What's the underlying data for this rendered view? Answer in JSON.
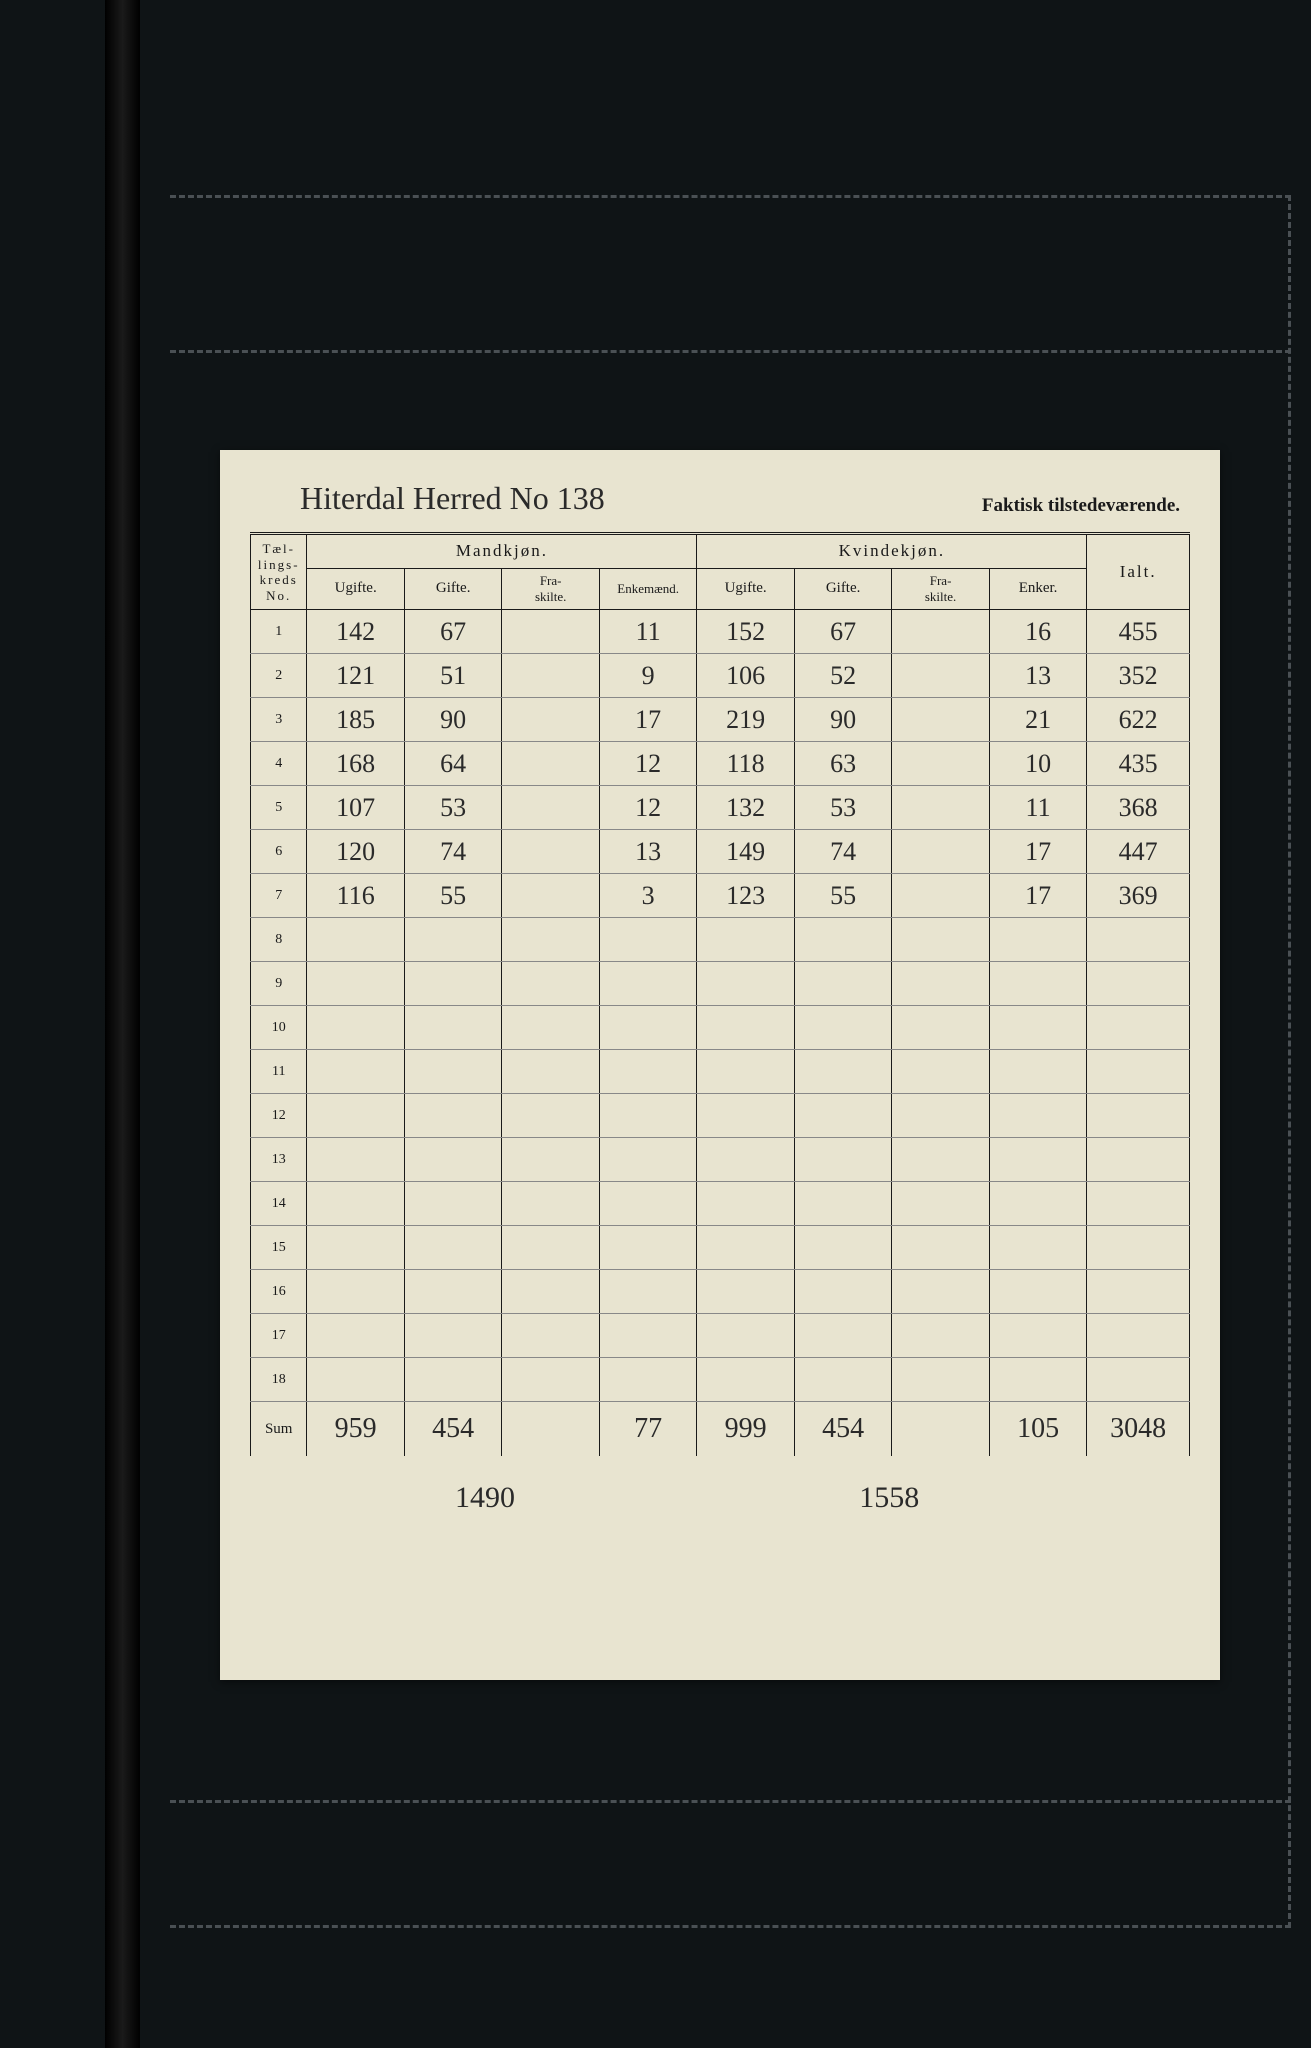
{
  "page": {
    "title_handwritten": "Hiterdal Herred No 138",
    "header_right": "Faktisk tilstedeværende.",
    "headers": {
      "no": "Tæl-\nlings-\nkreds\nNo.",
      "mandkjon": "Mandkjøn.",
      "kvindekjon": "Kvindekjøn.",
      "ugifte": "Ugifte.",
      "gifte": "Gifte.",
      "fraskilte": "Fra-\nskilte.",
      "enkemaend": "Enkemænd.",
      "enker": "Enker.",
      "ialt": "Ialt."
    },
    "row_labels": [
      "1",
      "2",
      "3",
      "4",
      "5",
      "6",
      "7",
      "8",
      "9",
      "10",
      "11",
      "12",
      "13",
      "14",
      "15",
      "16",
      "17",
      "18"
    ],
    "rows": [
      {
        "m_ugifte": "142",
        "m_gifte": "67",
        "m_fraskilte": "",
        "m_enke": "11",
        "k_ugifte": "152",
        "k_gifte": "67",
        "k_fraskilte": "",
        "k_enke": "16",
        "ialt": "455"
      },
      {
        "m_ugifte": "121",
        "m_gifte": "51",
        "m_fraskilte": "",
        "m_enke": "9",
        "k_ugifte": "106",
        "k_gifte": "52",
        "k_fraskilte": "",
        "k_enke": "13",
        "ialt": "352"
      },
      {
        "m_ugifte": "185",
        "m_gifte": "90",
        "m_fraskilte": "",
        "m_enke": "17",
        "k_ugifte": "219",
        "k_gifte": "90",
        "k_fraskilte": "",
        "k_enke": "21",
        "ialt": "622"
      },
      {
        "m_ugifte": "168",
        "m_gifte": "64",
        "m_fraskilte": "",
        "m_enke": "12",
        "k_ugifte": "118",
        "k_gifte": "63",
        "k_fraskilte": "",
        "k_enke": "10",
        "ialt": "435"
      },
      {
        "m_ugifte": "107",
        "m_gifte": "53",
        "m_fraskilte": "",
        "m_enke": "12",
        "k_ugifte": "132",
        "k_gifte": "53",
        "k_fraskilte": "",
        "k_enke": "11",
        "ialt": "368"
      },
      {
        "m_ugifte": "120",
        "m_gifte": "74",
        "m_fraskilte": "",
        "m_enke": "13",
        "k_ugifte": "149",
        "k_gifte": "74",
        "k_fraskilte": "",
        "k_enke": "17",
        "ialt": "447"
      },
      {
        "m_ugifte": "116",
        "m_gifte": "55",
        "m_fraskilte": "",
        "m_enke": "3",
        "k_ugifte": "123",
        "k_gifte": "55",
        "k_fraskilte": "",
        "k_enke": "17",
        "ialt": "369"
      },
      {
        "m_ugifte": "",
        "m_gifte": "",
        "m_fraskilte": "",
        "m_enke": "",
        "k_ugifte": "",
        "k_gifte": "",
        "k_fraskilte": "",
        "k_enke": "",
        "ialt": ""
      },
      {
        "m_ugifte": "",
        "m_gifte": "",
        "m_fraskilte": "",
        "m_enke": "",
        "k_ugifte": "",
        "k_gifte": "",
        "k_fraskilte": "",
        "k_enke": "",
        "ialt": ""
      },
      {
        "m_ugifte": "",
        "m_gifte": "",
        "m_fraskilte": "",
        "m_enke": "",
        "k_ugifte": "",
        "k_gifte": "",
        "k_fraskilte": "",
        "k_enke": "",
        "ialt": ""
      },
      {
        "m_ugifte": "",
        "m_gifte": "",
        "m_fraskilte": "",
        "m_enke": "",
        "k_ugifte": "",
        "k_gifte": "",
        "k_fraskilte": "",
        "k_enke": "",
        "ialt": ""
      },
      {
        "m_ugifte": "",
        "m_gifte": "",
        "m_fraskilte": "",
        "m_enke": "",
        "k_ugifte": "",
        "k_gifte": "",
        "k_fraskilte": "",
        "k_enke": "",
        "ialt": ""
      },
      {
        "m_ugifte": "",
        "m_gifte": "",
        "m_fraskilte": "",
        "m_enke": "",
        "k_ugifte": "",
        "k_gifte": "",
        "k_fraskilte": "",
        "k_enke": "",
        "ialt": ""
      },
      {
        "m_ugifte": "",
        "m_gifte": "",
        "m_fraskilte": "",
        "m_enke": "",
        "k_ugifte": "",
        "k_gifte": "",
        "k_fraskilte": "",
        "k_enke": "",
        "ialt": ""
      },
      {
        "m_ugifte": "",
        "m_gifte": "",
        "m_fraskilte": "",
        "m_enke": "",
        "k_ugifte": "",
        "k_gifte": "",
        "k_fraskilte": "",
        "k_enke": "",
        "ialt": ""
      },
      {
        "m_ugifte": "",
        "m_gifte": "",
        "m_fraskilte": "",
        "m_enke": "",
        "k_ugifte": "",
        "k_gifte": "",
        "k_fraskilte": "",
        "k_enke": "",
        "ialt": ""
      },
      {
        "m_ugifte": "",
        "m_gifte": "",
        "m_fraskilte": "",
        "m_enke": "",
        "k_ugifte": "",
        "k_gifte": "",
        "k_fraskilte": "",
        "k_enke": "",
        "ialt": ""
      },
      {
        "m_ugifte": "",
        "m_gifte": "",
        "m_fraskilte": "",
        "m_enke": "",
        "k_ugifte": "",
        "k_gifte": "",
        "k_fraskilte": "",
        "k_enke": "",
        "ialt": ""
      }
    ],
    "sum_label": "Sum",
    "sum": {
      "m_ugifte": "959",
      "m_gifte": "454",
      "m_fraskilte": "",
      "m_enke": "77",
      "k_ugifte": "999",
      "k_gifte": "454",
      "k_fraskilte": "",
      "k_enke": "105",
      "ialt": "3048"
    },
    "subtotal_m": "1490",
    "subtotal_k": "1558",
    "colors": {
      "background": "#0f1416",
      "paper": "#e8e4d0",
      "ink_print": "#1a1a1a",
      "ink_hand": "#2a2a2a",
      "dash": "#4a5054"
    }
  }
}
